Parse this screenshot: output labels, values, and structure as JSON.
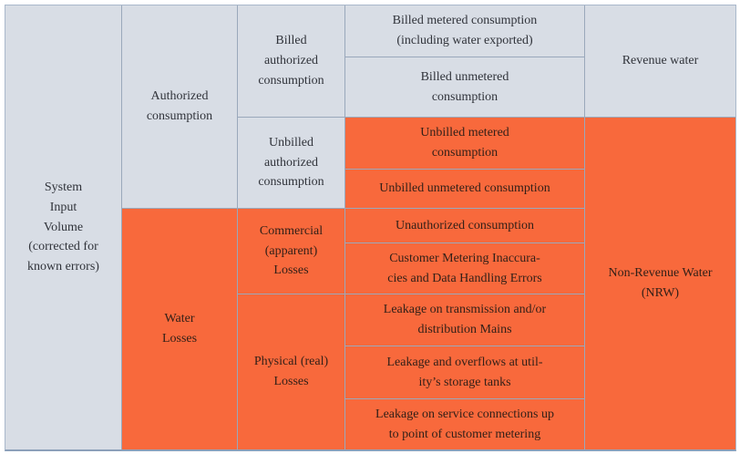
{
  "table": {
    "title": "IWA water balance table",
    "colors": {
      "grey_cell": "#d8dde5",
      "orange_cell": "#f8693c",
      "grid_line": "#9aa8bb",
      "outer_border": "#a9b8cb",
      "bottom_border": "#8ca0ba",
      "text_on_grey": "#30333a",
      "text_on_orange": "#332018"
    },
    "cells": {
      "system_input_volume": "System\nInput\nVolume\n(corrected for\nknown errors)",
      "authorized_consumption": "Authorized\nconsumption",
      "water_losses": "Water\nLosses",
      "billed_authorized_consumption": "Billed\nauthorized\nconsumption",
      "unbilled_authorized_consumption": "Unbilled\nauthorized\nconsumption",
      "commercial_apparent_losses": "Commercial\n(apparent)\nLosses",
      "physical_real_losses": "Physical (real)\nLosses",
      "billed_metered_consumption": "Billed metered consumption\n(including water exported)",
      "billed_unmetered_consumption": "Billed unmetered\nconsumption",
      "unbilled_metered_consumption": "Unbilled metered\nconsumption",
      "unbilled_unmetered_consumption": "Unbilled unmetered consumption",
      "unauthorized_consumption": "Unauthorized consumption",
      "customer_metering_inaccuracies": "Customer Metering Inaccura-\ncies and Data Handling Errors",
      "leakage_transmission_mains": "Leakage on transmission and/or\ndistribution Mains",
      "leakage_storage_tanks": "Leakage and overflows at util-\nity’s storage tanks",
      "leakage_service_connections": "Leakage on service connections up\nto point of customer metering",
      "revenue_water": "Revenue water",
      "non_revenue_water": "Non-Revenue Water\n(NRW)"
    }
  }
}
